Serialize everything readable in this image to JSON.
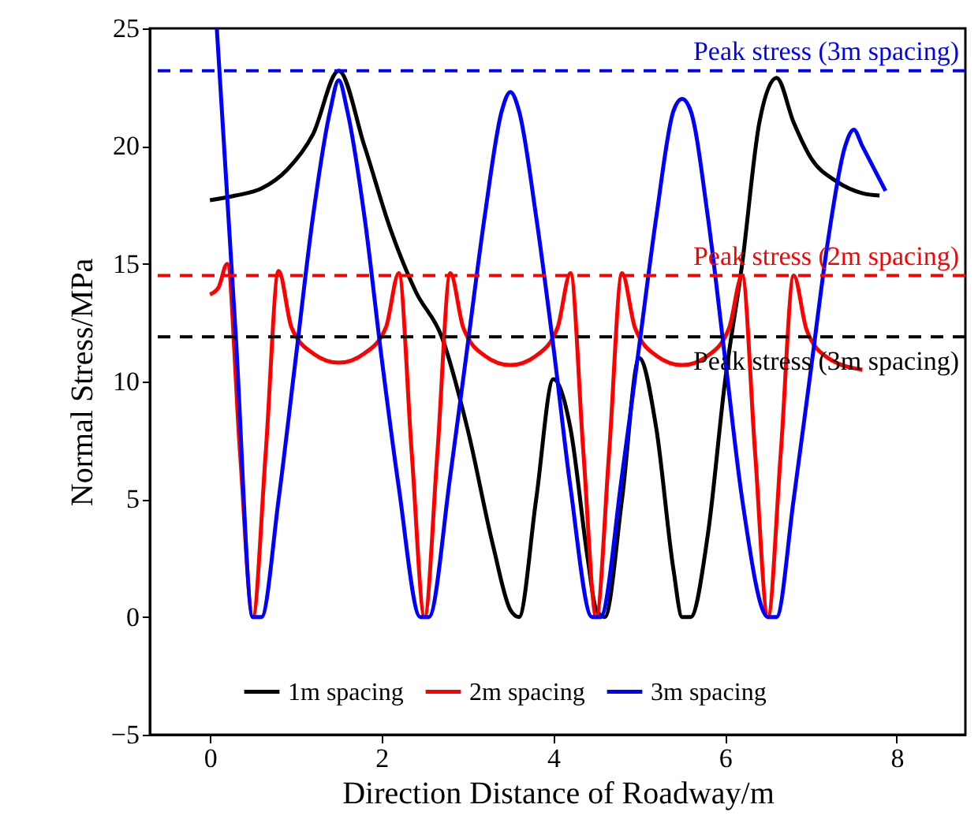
{
  "chart_data": {
    "type": "line",
    "xlabel": "Direction Distance of Roadway/m",
    "ylabel": "Normal Stress/MPa",
    "xlim": [
      -0.7,
      8.8
    ],
    "ylim": [
      -5,
      25
    ],
    "xticks": [
      0,
      2,
      4,
      6,
      8
    ],
    "yticks": [
      -5,
      0,
      5,
      10,
      15,
      20,
      25
    ],
    "grid": false,
    "legend": "bottom",
    "marker": "none",
    "line_style": "solid",
    "series": [
      {
        "name": "1m spacing",
        "color": "#000000",
        "x": [
          0,
          0.3,
          0.6,
          0.9,
          1.2,
          1.5,
          1.8,
          2.1,
          2.4,
          2.7,
          3,
          3.3,
          3.5,
          3.6,
          3.8,
          4,
          4.2,
          4.4,
          4.5,
          4.6,
          4.8,
          5,
          5.2,
          5.4,
          5.5,
          5.6,
          5.8,
          6,
          6.2,
          6.4,
          6.6,
          6.8,
          7,
          7.3,
          7.6,
          7.8
        ],
        "values": [
          17.7,
          17.9,
          18.2,
          19,
          20.5,
          23.2,
          20,
          16.5,
          13.8,
          11.9,
          8,
          3,
          0.3,
          0,
          5,
          10.1,
          8,
          2.5,
          0.3,
          0,
          5,
          11,
          8,
          2,
          0,
          0,
          3.5,
          10,
          15,
          21,
          22.9,
          21,
          19.5,
          18.5,
          18,
          17.9
        ]
      },
      {
        "name": "2m spacing",
        "color": "#ff0000",
        "x": [
          0,
          0.1,
          0.2,
          0.35,
          0.5,
          0.65,
          0.8,
          0.95,
          1.2,
          1.5,
          1.8,
          2.05,
          2.2,
          2.35,
          2.5,
          2.65,
          2.8,
          2.95,
          3.2,
          3.5,
          3.8,
          4.05,
          4.2,
          4.35,
          4.5,
          4.65,
          4.8,
          4.95,
          5.2,
          5.5,
          5.8,
          6.05,
          6.2,
          6.35,
          6.5,
          6.65,
          6.8,
          6.95,
          7.2,
          7.6
        ],
        "values": [
          13.7,
          14,
          15,
          7,
          0,
          7,
          14.7,
          12.3,
          11.2,
          10.8,
          11.2,
          12.3,
          14.6,
          7,
          0,
          7,
          14.6,
          12.3,
          11.1,
          10.7,
          11.1,
          12.3,
          14.6,
          7,
          0,
          7,
          14.6,
          12.3,
          11.1,
          10.7,
          11.1,
          12.3,
          14.5,
          7,
          0,
          7,
          14.5,
          12.2,
          11,
          10.5
        ]
      },
      {
        "name": "3m spacing",
        "color": "#0000ff",
        "x": [
          0.08,
          0.3,
          0.5,
          0.6,
          0.8,
          1,
          1.2,
          1.4,
          1.5,
          1.6,
          1.8,
          2,
          2.2,
          2.45,
          2.55,
          2.8,
          3,
          3.2,
          3.4,
          3.5,
          3.6,
          3.8,
          4,
          4.2,
          4.45,
          4.55,
          4.8,
          5,
          5.2,
          5.4,
          5.5,
          5.6,
          5.8,
          6,
          6.2,
          6.5,
          6.6,
          6.8,
          7,
          7.2,
          7.4,
          7.5,
          7.6,
          7.87
        ],
        "values": [
          25,
          12,
          0,
          0,
          5,
          11,
          17,
          21.5,
          22.8,
          21.5,
          17,
          11,
          5.5,
          0,
          0,
          6,
          11.5,
          17,
          21.5,
          22.3,
          21.5,
          17,
          11.5,
          5.5,
          0,
          0,
          6,
          11.5,
          17,
          21.5,
          22,
          21.5,
          17,
          11,
          5,
          0,
          0,
          5,
          10.5,
          16,
          20,
          20.7,
          20,
          18.1
        ]
      }
    ],
    "ref_lines": [
      {
        "axis": "y",
        "value": 23.2,
        "label": "Peak stress (3m spacing)",
        "color": "#0000ff",
        "line_style": "dashed"
      },
      {
        "axis": "y",
        "value": 14.5,
        "label": "Peak stress (2m spacing)",
        "color": "#ff0000",
        "line_style": "dashed"
      },
      {
        "axis": "y",
        "value": 11.9,
        "label": "Peak stress (3m spacing)",
        "color": "#000000",
        "line_style": "dashed"
      }
    ]
  }
}
